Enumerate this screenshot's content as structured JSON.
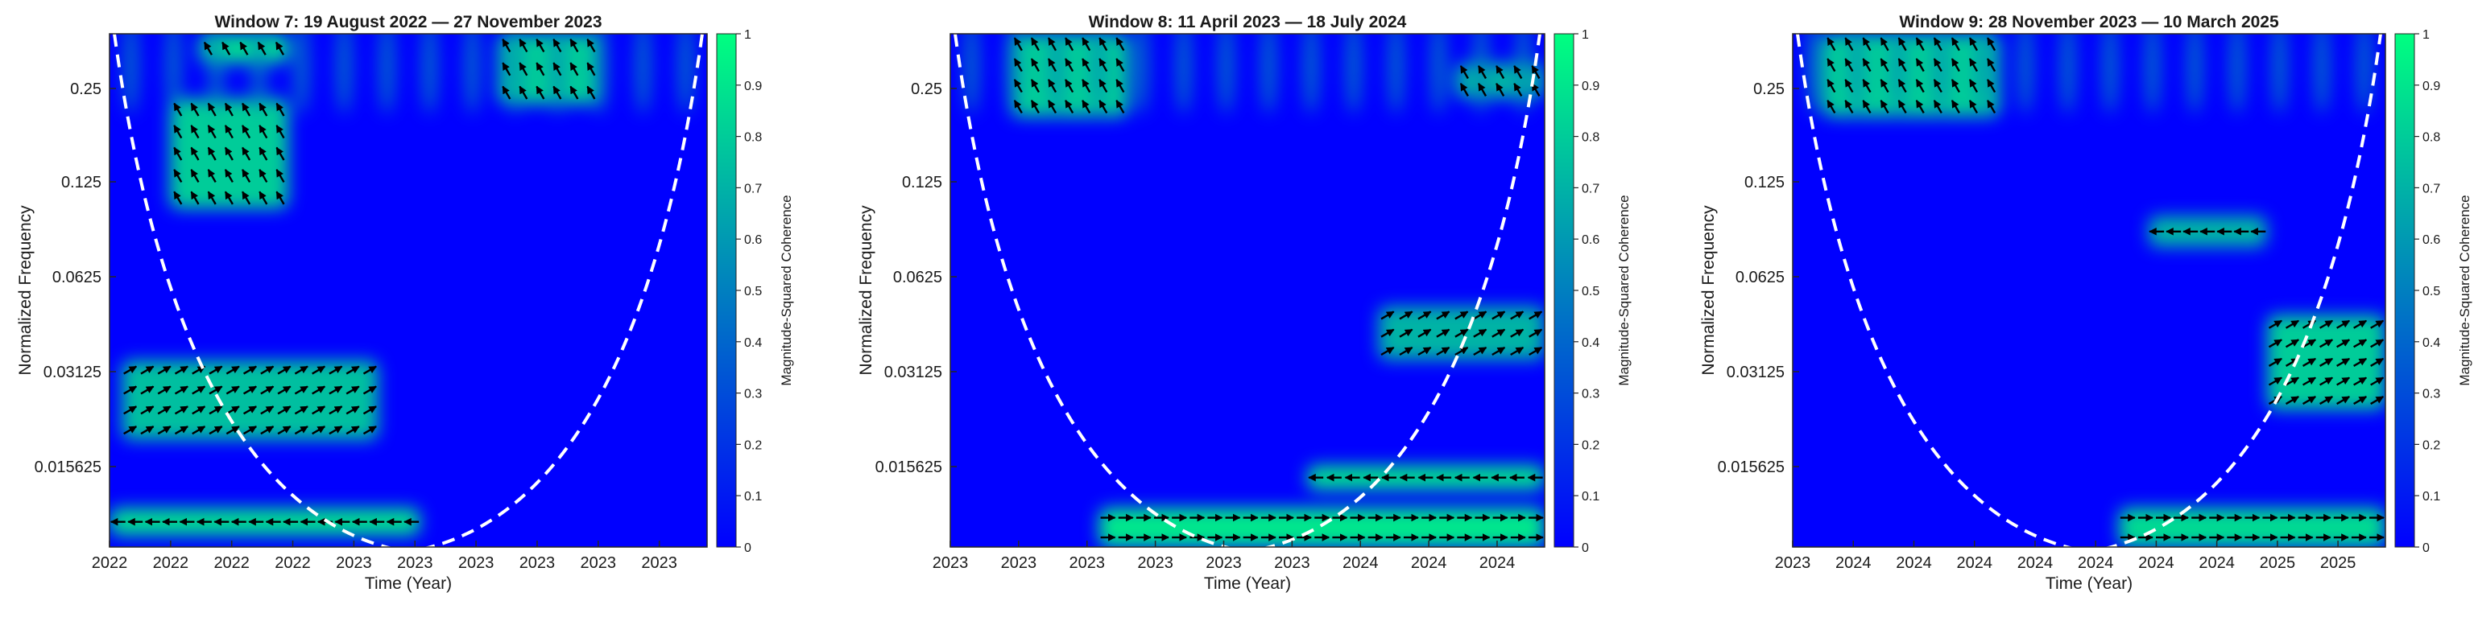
{
  "colors": {
    "cmap_low": "#0000ff",
    "cmap_high": "#00ff80",
    "cone": "#ffffff",
    "arrow": "#000000",
    "text": "#1a1a1a"
  },
  "panels": [
    {
      "title": "Window 7: 19 August 2022 — 27 November 2023",
      "ylabel": "Normalized Frequency",
      "xlabel": "Time (Year)",
      "yticks": [
        "0.25",
        "0.125",
        "0.0625",
        "0.03125",
        "0.015625"
      ],
      "xticks": [
        "2022",
        "2022",
        "2022",
        "2022",
        "2023",
        "2023",
        "2023",
        "2023",
        "2023",
        "2023"
      ],
      "colorbar_label": "Magnitude-Squared Coherence",
      "colorbar_ticks": [
        "0",
        "0.1",
        "0.2",
        "0.3",
        "0.4",
        "0.5",
        "0.6",
        "0.7",
        "0.8",
        "0.9",
        "1"
      ]
    },
    {
      "title": "Window 8: 11 April 2023 — 18 July 2024",
      "ylabel": "Normalized Frequency",
      "xlabel": "Time (Year)",
      "yticks": [
        "0.25",
        "0.125",
        "0.0625",
        "0.03125",
        "0.015625"
      ],
      "xticks": [
        "2023",
        "2023",
        "2023",
        "2023",
        "2023",
        "2023",
        "2024",
        "2024",
        "2024"
      ],
      "colorbar_label": "Magnitude-Squared Coherence",
      "colorbar_ticks": [
        "0",
        "0.1",
        "0.2",
        "0.3",
        "0.4",
        "0.5",
        "0.6",
        "0.7",
        "0.8",
        "0.9",
        "1"
      ]
    },
    {
      "title": "Window 9: 28 November 2023 — 10 March 2025",
      "ylabel": "Normalized Frequency",
      "xlabel": "Time (Year)",
      "yticks": [
        "0.25",
        "0.125",
        "0.0625",
        "0.03125",
        "0.015625"
      ],
      "xticks": [
        "2023",
        "2024",
        "2024",
        "2024",
        "2024",
        "2024",
        "2024",
        "2024",
        "2025",
        "2025"
      ],
      "colorbar_label": "Magnitude-Squared Coherence",
      "colorbar_ticks": [
        "0",
        "0.1",
        "0.2",
        "0.3",
        "0.4",
        "0.5",
        "0.6",
        "0.7",
        "0.8",
        "0.9",
        "1"
      ]
    }
  ],
  "chart_data": [
    {
      "type": "heatmap",
      "title": "Window 7: 19 August 2022 — 27 November 2023",
      "xlabel": "Time (Year)",
      "ylabel": "Normalized Frequency",
      "yscale": "log2",
      "ylim": [
        0.0078125,
        0.375
      ],
      "yticks": [
        0.25,
        0.125,
        0.0625,
        0.03125,
        0.015625
      ],
      "colorbar": {
        "label": "Magnitude-Squared Coherence",
        "range": [
          0,
          1
        ]
      },
      "grid": false,
      "high_coherence_regions": [
        {
          "x": [
            0.02,
            0.45
          ],
          "freq": [
            0.0175,
            0.032
          ],
          "coherence": 0.75,
          "phase": "in-phase leading (arrows up-right)"
        },
        {
          "x": [
            0.0,
            0.52
          ],
          "freq": [
            0.0085,
            0.0105
          ],
          "coherence": 0.85,
          "phase": "anti-phase (arrows left)"
        },
        {
          "x": [
            0.1,
            0.3
          ],
          "freq": [
            0.1,
            0.23
          ],
          "coherence": 0.8,
          "phase": "mixed"
        },
        {
          "x": [
            0.15,
            0.3
          ],
          "freq": [
            0.3,
            0.375
          ],
          "coherence": 0.85,
          "phase": "mixed"
        },
        {
          "x": [
            0.65,
            0.82
          ],
          "freq": [
            0.22,
            0.375
          ],
          "coherence": 0.8,
          "phase": "mixed"
        }
      ]
    },
    {
      "type": "heatmap",
      "title": "Window 8: 11 April 2023 — 18 July 2024",
      "xlabel": "Time (Year)",
      "ylabel": "Normalized Frequency",
      "yscale": "log2",
      "ylim": [
        0.0078125,
        0.375
      ],
      "yticks": [
        0.25,
        0.125,
        0.0625,
        0.03125,
        0.015625
      ],
      "colorbar": {
        "label": "Magnitude-Squared Coherence",
        "range": [
          0,
          1
        ]
      },
      "grid": false,
      "high_coherence_regions": [
        {
          "x": [
            0.25,
            1.0
          ],
          "freq": [
            0.0078,
            0.0105
          ],
          "coherence": 0.9,
          "phase": "in-phase (arrows right)"
        },
        {
          "x": [
            0.6,
            1.0
          ],
          "freq": [
            0.012,
            0.0145
          ],
          "coherence": 0.85,
          "phase": "anti-phase (arrows left)"
        },
        {
          "x": [
            0.72,
            1.0
          ],
          "freq": [
            0.032,
            0.048
          ],
          "coherence": 0.7,
          "phase": "in-phase leading"
        },
        {
          "x": [
            0.1,
            0.3
          ],
          "freq": [
            0.2,
            0.375
          ],
          "coherence": 0.8,
          "phase": "mixed"
        },
        {
          "x": [
            0.85,
            1.0
          ],
          "freq": [
            0.23,
            0.3
          ],
          "coherence": 0.7,
          "phase": "mixed"
        }
      ]
    },
    {
      "type": "heatmap",
      "title": "Window 9: 28 November 2023 — 10 March 2025",
      "xlabel": "Time (Year)",
      "ylabel": "Normalized Frequency",
      "yscale": "log2",
      "ylim": [
        0.0078125,
        0.375
      ],
      "yticks": [
        0.25,
        0.125,
        0.0625,
        0.03125,
        0.015625
      ],
      "colorbar": {
        "label": "Magnitude-Squared Coherence",
        "range": [
          0,
          1
        ]
      },
      "grid": false,
      "high_coherence_regions": [
        {
          "x": [
            0.55,
            1.0
          ],
          "freq": [
            0.0078,
            0.0105
          ],
          "coherence": 0.85,
          "phase": "in-phase (arrows right)"
        },
        {
          "x": [
            0.8,
            1.0
          ],
          "freq": [
            0.022,
            0.045
          ],
          "coherence": 0.8,
          "phase": "leading by 90 degrees (arrows up)"
        },
        {
          "x": [
            0.6,
            0.8
          ],
          "freq": [
            0.075,
            0.095
          ],
          "coherence": 0.7,
          "phase": "anti-phase lagging"
        },
        {
          "x": [
            0.05,
            0.35
          ],
          "freq": [
            0.2,
            0.375
          ],
          "coherence": 0.8,
          "phase": "mixed"
        }
      ]
    }
  ]
}
